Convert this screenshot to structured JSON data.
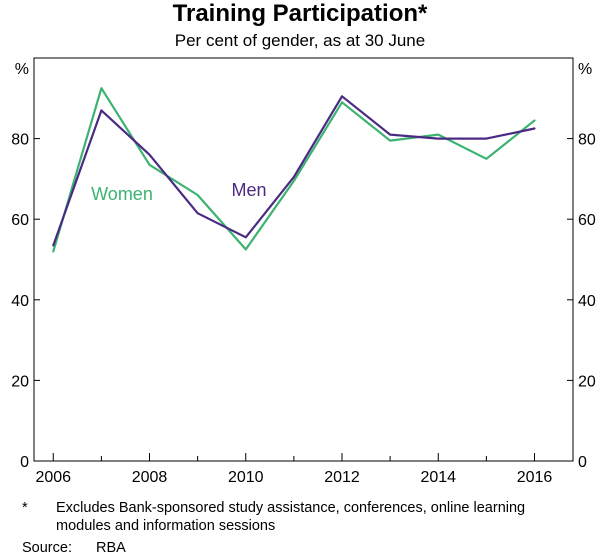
{
  "chart_data": {
    "type": "line",
    "title": "Training Participation*",
    "subtitle": "Per cent of gender, as at 30 June",
    "y_unit": "%",
    "ylim": [
      0,
      100
    ],
    "yticks": [
      0,
      20,
      40,
      60,
      80
    ],
    "xlim": [
      2005.6,
      2016.8
    ],
    "xticks": [
      2006,
      2008,
      2010,
      2012,
      2014,
      2016
    ],
    "x": [
      2006,
      2007,
      2008,
      2009,
      2010,
      2011,
      2012,
      2013,
      2014,
      2015,
      2016
    ],
    "series": [
      {
        "name": "Women",
        "color": "#3cb371",
        "values": [
          52,
          92.5,
          73.5,
          66,
          52.5,
          69.5,
          89,
          79.5,
          81,
          75,
          84.5
        ]
      },
      {
        "name": "Men",
        "color": "#4b2a84",
        "values": [
          53.5,
          87,
          76,
          61.5,
          55.5,
          70.5,
          90.5,
          81,
          80,
          80,
          82.5
        ]
      }
    ],
    "grid": false,
    "legend": "inline labels"
  },
  "footnote": {
    "marker": "*",
    "text": "Excludes Bank-sponsored study assistance, conferences, online learning modules and information sessions"
  },
  "source": {
    "label": "Source:",
    "value": "RBA"
  }
}
